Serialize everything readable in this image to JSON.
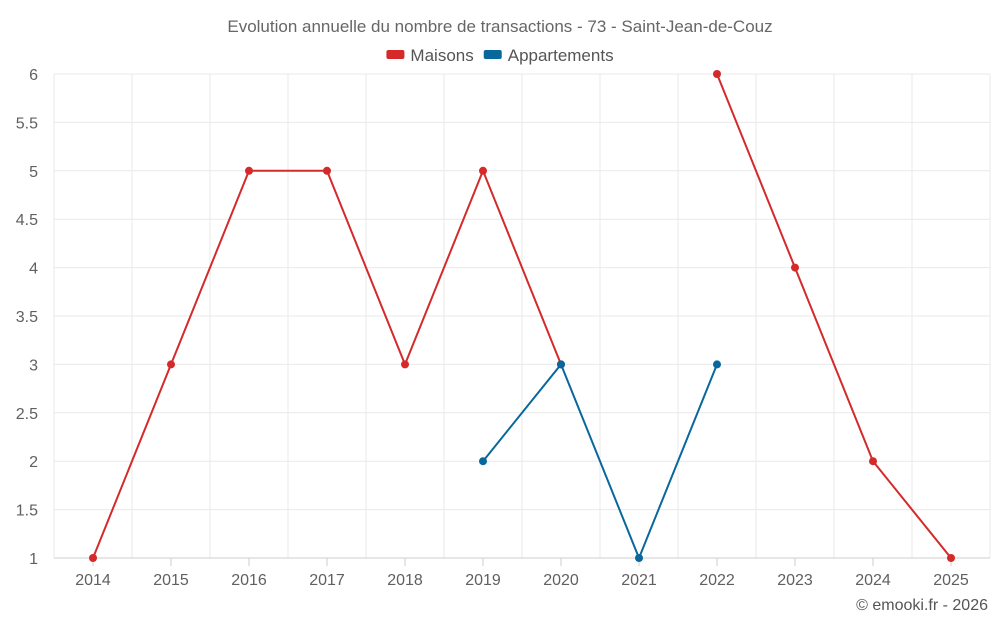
{
  "chart_data": {
    "type": "line",
    "title": "Evolution annuelle du nombre de transactions - 73 - Saint-Jean-de-Couz",
    "xlabel": "",
    "ylabel": "",
    "x": [
      "2014",
      "2015",
      "2016",
      "2017",
      "2018",
      "2019",
      "2020",
      "2021",
      "2022",
      "2023",
      "2024",
      "2025"
    ],
    "ylim": [
      1,
      6
    ],
    "yticks": [
      "1",
      "1.5",
      "2",
      "2.5",
      "3",
      "3.5",
      "4",
      "4.5",
      "5",
      "5.5",
      "6"
    ],
    "grid": true,
    "legend_position": "top-center",
    "series": [
      {
        "name": "Maisons",
        "color": "#d42a2a",
        "values": [
          1,
          3,
          5,
          5,
          3,
          5,
          3,
          null,
          6,
          4,
          2,
          1
        ]
      },
      {
        "name": "Appartements",
        "color": "#08689c",
        "values": [
          null,
          null,
          null,
          null,
          null,
          2,
          3,
          1,
          3,
          null,
          null,
          null
        ]
      }
    ]
  },
  "credit": "© emooki.fr - 2026"
}
